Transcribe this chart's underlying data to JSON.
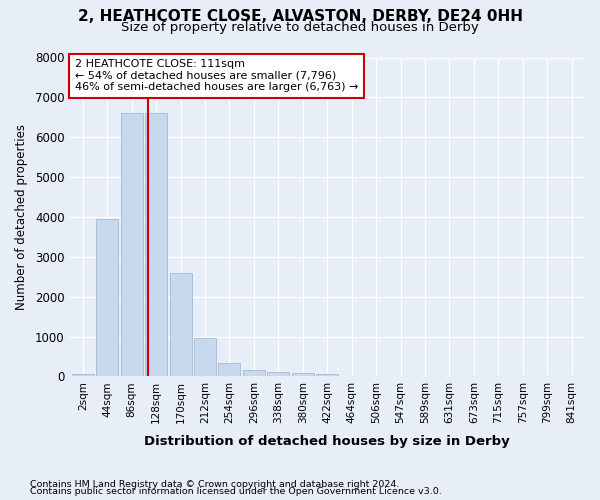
{
  "title1": "2, HEATHCOTE CLOSE, ALVASTON, DERBY, DE24 0HH",
  "title2": "Size of property relative to detached houses in Derby",
  "xlabel": "Distribution of detached houses by size in Derby",
  "ylabel": "Number of detached properties",
  "bar_color": "#c8d9ee",
  "bar_edge_color": "#a0bcd8",
  "categories": [
    "2sqm",
    "44sqm",
    "86sqm",
    "128sqm",
    "170sqm",
    "212sqm",
    "254sqm",
    "296sqm",
    "338sqm",
    "380sqm",
    "422sqm",
    "464sqm",
    "506sqm",
    "547sqm",
    "589sqm",
    "631sqm",
    "673sqm",
    "715sqm",
    "757sqm",
    "799sqm",
    "841sqm"
  ],
  "values": [
    50,
    3950,
    6600,
    6600,
    2600,
    960,
    340,
    155,
    110,
    90,
    70,
    0,
    0,
    0,
    0,
    0,
    0,
    0,
    0,
    0,
    0
  ],
  "vline_x": 2.67,
  "vline_color": "#cc0000",
  "annotation_line1": "2 HEATHCOTE CLOSE: 111sqm",
  "annotation_line2": "← 54% of detached houses are smaller (7,796)",
  "annotation_line3": "46% of semi-detached houses are larger (6,763) →",
  "annotation_box_color": "#cc0000",
  "annotation_bg": "#ffffff",
  "ylim": [
    0,
    8000
  ],
  "yticks": [
    0,
    1000,
    2000,
    3000,
    4000,
    5000,
    6000,
    7000,
    8000
  ],
  "footer1": "Contains HM Land Registry data © Crown copyright and database right 2024.",
  "footer2": "Contains public sector information licensed under the Open Government Licence v3.0.",
  "bg_color": "#e8eef7",
  "grid_color": "#ffffff",
  "title1_fontsize": 11,
  "title2_fontsize": 9.5
}
